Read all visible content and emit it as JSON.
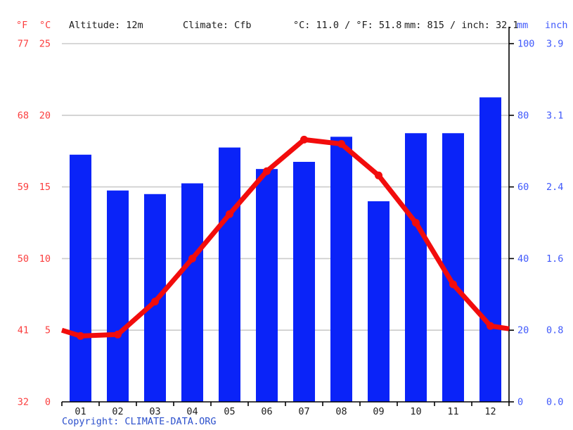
{
  "header": {
    "f_label": "°F",
    "c_label": "°C",
    "altitude": "Altitude: 12m",
    "climate": "Climate: Cfb",
    "temp_summary": "°C: 11.0 / °F: 51.8",
    "precip_summary": "mm: 815 / inch: 32.1",
    "mm_label": "mm",
    "inch_label": "inch"
  },
  "footer": {
    "copyright_prefix": "Copyright: ",
    "copyright_link": "CLIMATE-DATA.ORG"
  },
  "chart_data": {
    "type": "bar+line",
    "title": "Climate graph (climograph): monthly precipitation bars and mean temperature line",
    "months": [
      "01",
      "02",
      "03",
      "04",
      "05",
      "06",
      "07",
      "08",
      "09",
      "10",
      "11",
      "12"
    ],
    "series": [
      {
        "name": "precipitation",
        "type": "bar",
        "unit": "mm",
        "values": [
          69,
          59,
          58,
          61,
          71,
          65,
          67,
          74,
          56,
          75,
          75,
          85
        ],
        "annual_total_mm": 815,
        "annual_total_inch": 32.1
      },
      {
        "name": "temperature",
        "type": "line",
        "unit": "°C",
        "values": [
          4.6,
          4.7,
          7.0,
          10.0,
          13.1,
          16.1,
          18.3,
          18.0,
          15.8,
          12.5,
          8.2,
          5.3
        ],
        "edge_left": 5.0,
        "edge_right": 5.1,
        "annual_mean_c": 11.0,
        "annual_mean_f": 51.8
      }
    ],
    "temp_axis": {
      "c_ticks": [
        25,
        20,
        15,
        10,
        5,
        0
      ],
      "f_ticks": [
        77,
        68,
        59,
        50,
        41,
        32
      ],
      "range_c": [
        0,
        25
      ],
      "side": "left"
    },
    "precip_axis": {
      "mm_ticks": [
        100,
        80,
        60,
        40,
        20,
        0
      ],
      "inch_ticks": [
        "3.9",
        "3.1",
        "2.4",
        "1.6",
        "0.8",
        "0.0"
      ],
      "range_mm": [
        0,
        100
      ],
      "side": "right"
    },
    "grid": "horizontal",
    "legend": "none"
  },
  "colors": {
    "bar_blue": "#0a23f8",
    "line_red": "#f20c0c",
    "axis_label_red": "#fb3e3e",
    "axis_label_blue": "#3f58fb",
    "grid_gray": "#cbcbcb",
    "axis_black": "#000000",
    "month_label": "#1c1c1c",
    "copyright_blue": "#2c50cc"
  }
}
